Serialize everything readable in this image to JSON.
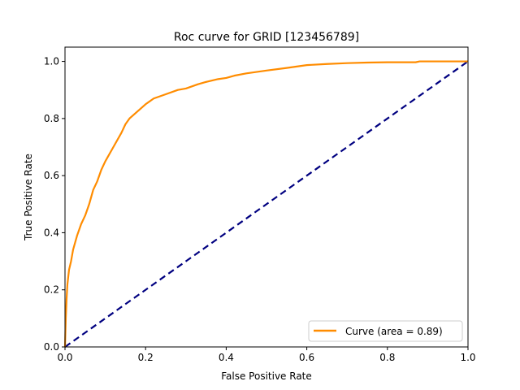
{
  "chart_data": {
    "type": "line",
    "title": "Roc curve for GRID [123456789]",
    "xlabel": "False Positive Rate",
    "ylabel": "True Positive Rate",
    "xlim": [
      0.0,
      1.0
    ],
    "ylim": [
      0.0,
      1.05
    ],
    "x_ticks": [
      "0.0",
      "0.2",
      "0.4",
      "0.6",
      "0.8",
      "1.0"
    ],
    "y_ticks": [
      "0.0",
      "0.2",
      "0.4",
      "0.6",
      "0.8",
      "1.0"
    ],
    "grid": false,
    "legend_position": "lower-right",
    "series": [
      {
        "name": "Curve (area = 0.89)",
        "color": "#ff8c00",
        "style": "solid",
        "x": [
          0.0,
          0.002,
          0.004,
          0.006,
          0.01,
          0.015,
          0.02,
          0.03,
          0.04,
          0.05,
          0.06,
          0.07,
          0.08,
          0.09,
          0.1,
          0.12,
          0.14,
          0.15,
          0.16,
          0.18,
          0.2,
          0.22,
          0.25,
          0.28,
          0.3,
          0.33,
          0.35,
          0.38,
          0.4,
          0.42,
          0.45,
          0.5,
          0.55,
          0.6,
          0.65,
          0.7,
          0.75,
          0.8,
          0.87,
          0.88,
          0.9,
          1.0
        ],
        "y": [
          0.0,
          0.1,
          0.17,
          0.22,
          0.27,
          0.3,
          0.34,
          0.39,
          0.43,
          0.46,
          0.5,
          0.55,
          0.58,
          0.62,
          0.65,
          0.7,
          0.75,
          0.78,
          0.8,
          0.825,
          0.85,
          0.87,
          0.885,
          0.9,
          0.905,
          0.92,
          0.928,
          0.938,
          0.942,
          0.95,
          0.958,
          0.968,
          0.977,
          0.987,
          0.991,
          0.994,
          0.996,
          0.997,
          0.997,
          1.0,
          1.0,
          1.0
        ]
      },
      {
        "name": "",
        "color": "#000080",
        "style": "dashed",
        "x": [
          0.0,
          1.0
        ],
        "y": [
          0.0,
          1.0
        ]
      }
    ]
  }
}
